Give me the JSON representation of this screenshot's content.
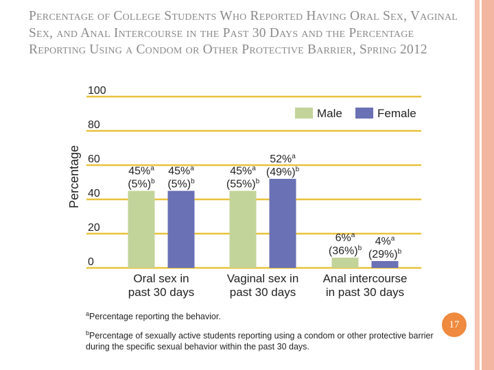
{
  "slide": {
    "title": "Percentage of College Students Who Reported Having Oral Sex, Vaginal Sex, and Anal Intercourse in the Past 30 Days and the Percentage Reporting Using a Condom or Other Protective Barrier, Spring 2012",
    "page_number": "17",
    "footnotes": [
      {
        "marker": "a",
        "text": "Percentage reporting the behavior."
      },
      {
        "marker": "b",
        "text": "Percentage of sexually active students reporting using a condom or other protective barrier during the specific sexual behavior within the past 30 days."
      }
    ]
  },
  "chart_data": {
    "type": "bar",
    "title": "",
    "xlabel": "",
    "ylabel": "Percentage",
    "ylim": [
      0,
      100
    ],
    "yticks": [
      "0",
      "20",
      "40",
      "60",
      "80",
      "100"
    ],
    "grid": true,
    "legend_position": "top-right",
    "categories": [
      "Oral sex in past 30 days",
      "Vaginal sex in past 30 days",
      "Anal intercourse in past 30 days"
    ],
    "category_lines": [
      [
        "Oral sex in",
        "past 30 days"
      ],
      [
        "Vaginal sex in",
        "past 30 days"
      ],
      [
        "Anal intercourse",
        "in past 30 days"
      ]
    ],
    "series": [
      {
        "name": "Male",
        "color": "#c3d49a",
        "values": [
          45,
          45,
          6
        ],
        "labels_top": [
          "45%",
          "45%",
          "6%"
        ],
        "labels_bottom": [
          "(5%)",
          "(55%)",
          "(36%)"
        ]
      },
      {
        "name": "Female",
        "color": "#6a71b5",
        "values": [
          45,
          52,
          4
        ],
        "labels_top": [
          "45%",
          "52%",
          "4%"
        ],
        "labels_bottom": [
          "(5%)",
          "(49%)",
          "(29%)"
        ]
      }
    ],
    "label_sup_top": "a",
    "label_sup_bottom": "b",
    "grid_color": "#e8c23a"
  }
}
